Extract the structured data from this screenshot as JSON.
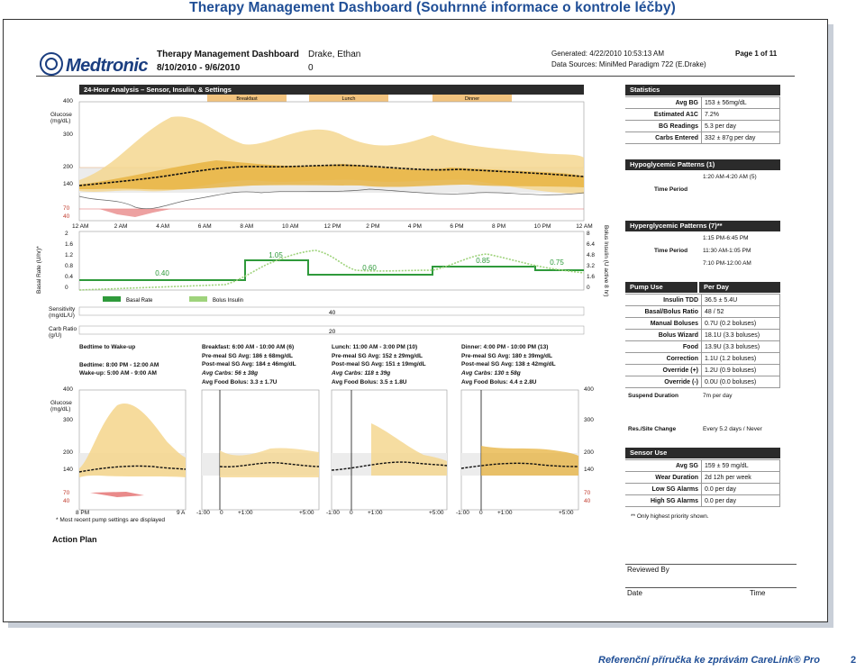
{
  "title": "Therapy Management Dashboard (Souhrnné informace o kontrole léčby)",
  "report": {
    "logo": "Medtronic",
    "name": "Therapy Management Dashboard",
    "patient": "Drake, Ethan",
    "range": "8/10/2010 - 9/6/2010",
    "zero": "0",
    "generated": "Generated: 4/22/2010 10:53:13 AM",
    "page": "Page 1 of 11",
    "sources": "Data Sources: MiniMed Paradigm 722 (E.Drake)"
  },
  "analysis": {
    "header": "24-Hour Analysis – Sensor, Insulin, & Settings",
    "meals": [
      "Breakfast",
      "Lunch",
      "Dinner"
    ],
    "glucose_label": "Glucose (mg/dL)",
    "glucose_ticks": [
      "400",
      "300",
      "200",
      "140",
      "70",
      "40"
    ],
    "time_ticks": [
      "12 AM",
      "2 AM",
      "4 AM",
      "6 AM",
      "8 AM",
      "10 AM",
      "12 PM",
      "2 PM",
      "4 PM",
      "6 PM",
      "8 PM",
      "10 PM",
      "12 AM"
    ],
    "basal_axis": "Basal Rate (U/hr)*",
    "basal_ticks": [
      "2",
      "1.6",
      "1.2",
      "0.8",
      "0.4",
      "0"
    ],
    "bolus_axis": "Bolus Insulin (U active 8 hr)",
    "bolus_ticks": [
      "8",
      "6.4",
      "4.8",
      "3.2",
      "1.6",
      "0"
    ],
    "basal_values": [
      "0.40",
      "1.05",
      "0.60",
      "0.85",
      "0.75"
    ],
    "legend_basal": "Basal Rate",
    "legend_bolus": "Bolus Insulin",
    "sensitivity_label": "Sensitivity (mg/dL/U)",
    "sensitivity_value": "40",
    "carb_label": "Carb Ratio (g/U)",
    "carb_value": "20"
  },
  "periods": [
    {
      "title": "Bedtime to Wake-up",
      "l1": "Bedtime: 8:00 PM - 12:00 AM",
      "l2": "Wake-up: 5:00 AM - 9:00 AM",
      "l3": "",
      "l4": "",
      "l5": ""
    },
    {
      "title": "Breakfast: 6:00 AM - 10:00 AM (6)",
      "l1": "Pre-meal SG Avg: 186 ± 68mg/dL",
      "l2": "Post-meal SG Avg: 184 ± 46mg/dL",
      "l3": "Avg Carbs: 56 ± 38g",
      "l4": "Avg Food Bolus: 3.3 ± 1.7U"
    },
    {
      "title": "Lunch: 11:00 AM - 3:00 PM (10)",
      "l1": "Pre-meal SG Avg: 152 ± 29mg/dL",
      "l2": "Post-meal SG Avg: 151 ± 19mg/dL",
      "l3": "Avg Carbs: 118 ± 39g",
      "l4": "Avg Food Bolus: 3.5 ± 1.8U"
    },
    {
      "title": "Dinner: 4:00 PM - 10:00 PM (13)",
      "l1": "Pre-meal SG Avg: 180 ± 39mg/dL",
      "l2": "Post-meal SG Avg: 138 ± 42mg/dL",
      "l3": "Avg Carbs: 130 ± 58g",
      "l4": "Avg Food Bolus: 4.4 ± 2.8U"
    }
  ],
  "mini": {
    "glucose_label": "Glucose (mg/dL)",
    "left_ticks": [
      "400",
      "300",
      "200",
      "140",
      "70",
      "40"
    ],
    "night_ticks": [
      "8 PM",
      "9 A"
    ],
    "meal_ticks": [
      "-1:00",
      "0",
      "+1:00",
      "+5:00"
    ],
    "footnote": "* Most recent pump settings are displayed"
  },
  "action_plan": "Action Plan",
  "statistics": {
    "header": "Statistics",
    "rows": [
      {
        "k": "Avg BG",
        "v": "153 ± 56mg/dL"
      },
      {
        "k": "Estimated A1C",
        "v": "7.2%"
      },
      {
        "k": "BG Readings",
        "v": "5.3 per day"
      },
      {
        "k": "Carbs Entered",
        "v": "332 ± 87g per day"
      }
    ]
  },
  "hypo": {
    "header": "Hypoglycemic Patterns (1)",
    "v1": "1:20 AM-4:20 AM (5)",
    "k": "Time Period"
  },
  "hyper": {
    "header": "Hyperglycemic Patterns (7)**",
    "v1": "1:15 PM-6:45 PM",
    "k": "Time Period",
    "v2": "11:30 AM-1:05 PM",
    "v3": "7:10 PM-12:00 AM"
  },
  "pump": {
    "h1": "Pump Use",
    "h2": "Per Day",
    "rows": [
      {
        "k": "Insulin TDD",
        "v": "36.5 ± 5.4U"
      },
      {
        "k": "Basal/Bolus Ratio",
        "v": "48 / 52"
      },
      {
        "k": "Manual Boluses",
        "v": "0.7U (0.2 boluses)"
      },
      {
        "k": "Bolus Wizard",
        "v": "18.1U (3.3 boluses)"
      },
      {
        "k": "Food",
        "v": "13.9U (3.3 boluses)"
      },
      {
        "k": "Correction",
        "v": "1.1U (1.2 boluses)"
      },
      {
        "k": "Override (+)",
        "v": "1.2U (0.9 boluses)"
      },
      {
        "k": "Override (-)",
        "v": "0.0U (0.0 boluses)"
      }
    ],
    "suspend_k": "Suspend Duration",
    "suspend_v": "7m per day",
    "site_k": "Res./Site Change",
    "site_v": "Every 5.2 days / Never"
  },
  "sensor": {
    "header": "Sensor Use",
    "rows": [
      {
        "k": "Avg SG",
        "v": "159 ± 59 mg/dL"
      },
      {
        "k": "Wear Duration",
        "v": "2d 12h per week"
      },
      {
        "k": "Low SG Alarms",
        "v": "0.0 per day"
      },
      {
        "k": "High SG Alarms",
        "v": "0.0 per day"
      }
    ],
    "note": "** Only highest priority shown."
  },
  "review": {
    "reviewed_by": "Reviewed By",
    "date": "Date",
    "time": "Time"
  },
  "footer": {
    "text": "Referenční příručka ke zprávám CareLink® Pro",
    "page": "2"
  },
  "colors": {
    "title": "#1f4e96",
    "band": "#f5d791",
    "band_dark": "#e7b23c",
    "green": "#2f9a3b",
    "green_light": "#9fd37c",
    "red": "#e98a8a",
    "meal": "#f2c37e"
  }
}
